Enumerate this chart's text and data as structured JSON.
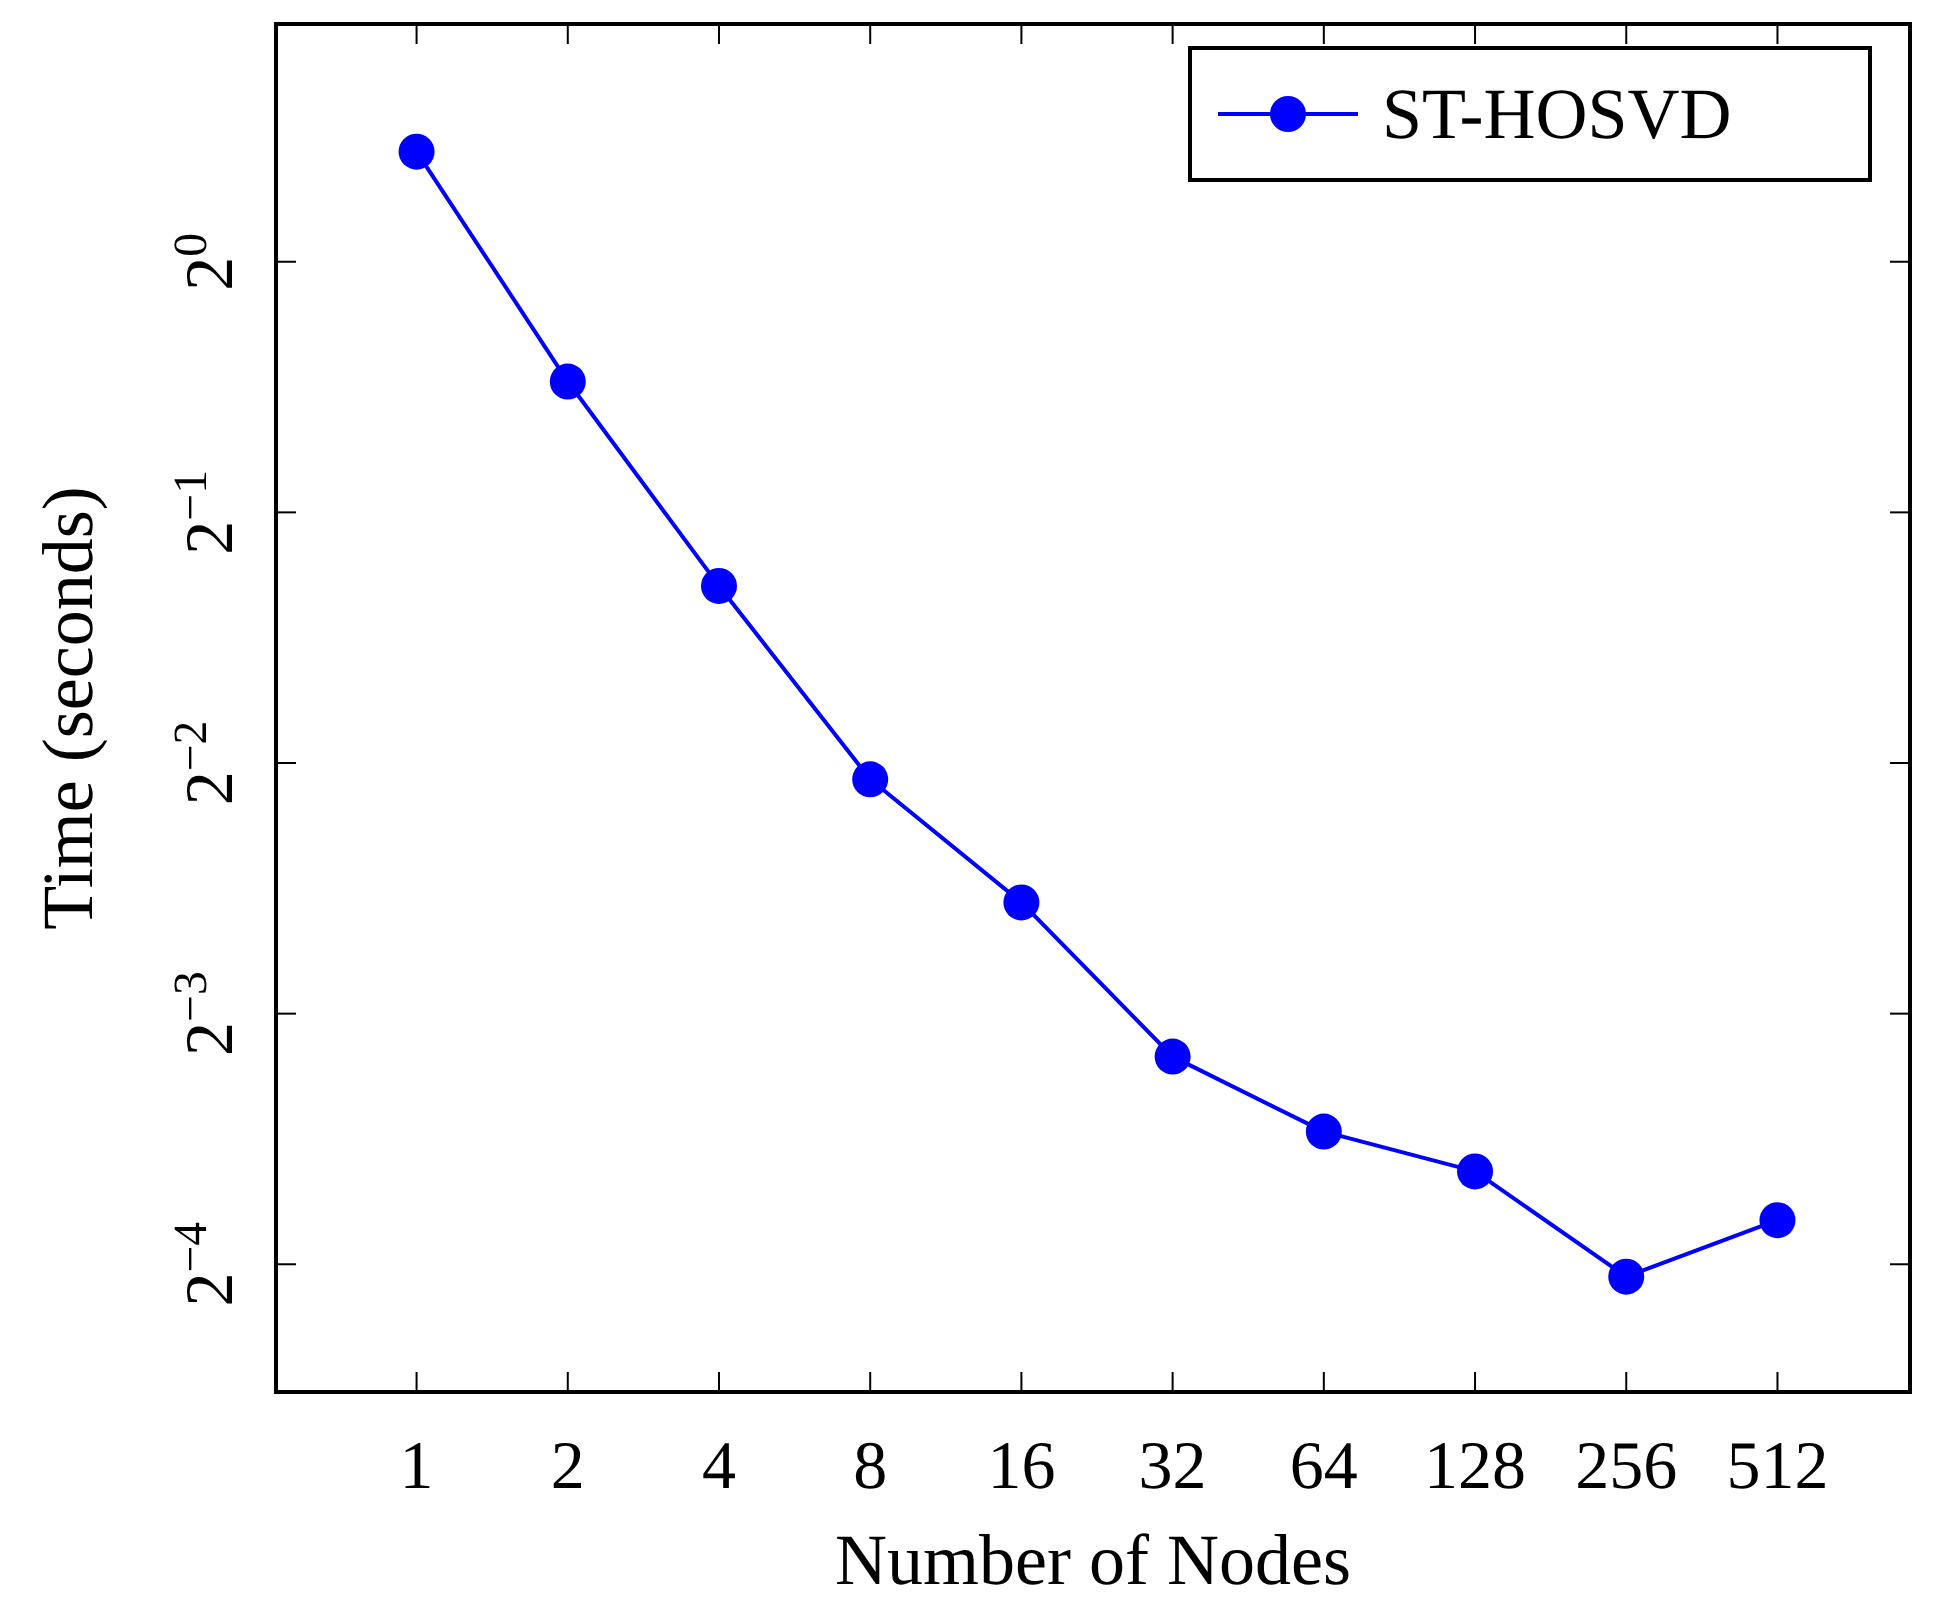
{
  "chart_data": {
    "type": "line",
    "xlabel": "Number of Nodes",
    "ylabel": "Time (seconds)",
    "log": "xy",
    "x": [
      1,
      2,
      4,
      8,
      16,
      32,
      64,
      128,
      256,
      512
    ],
    "series": [
      {
        "name": "ST-HOSVD",
        "color": "#0000ff",
        "values": [
          1.356,
          0.718,
          0.408,
          0.239,
          0.17,
          0.111,
          0.0902,
          0.0808,
          0.0604,
          0.0706
        ]
      }
    ],
    "xlim": [
      0.525,
      940
    ],
    "xticks": [
      1,
      2,
      4,
      8,
      16,
      32,
      64,
      128,
      256,
      512
    ],
    "ylim": [
      0.0439,
      1.93
    ],
    "yticks": [
      {
        "value": 1,
        "label": "2$^{0}$"
      },
      {
        "value": 0.5,
        "label": "2$^{−1}$"
      },
      {
        "value": 0.25,
        "label": "2$^{−2}$"
      },
      {
        "value": 0.125,
        "label": "2$^{−3}$"
      },
      {
        "value": 0.0625,
        "label": "2$^{−4}$"
      }
    ],
    "marker": "circle",
    "line_style": "solid",
    "legend": "top right",
    "grid": false
  }
}
